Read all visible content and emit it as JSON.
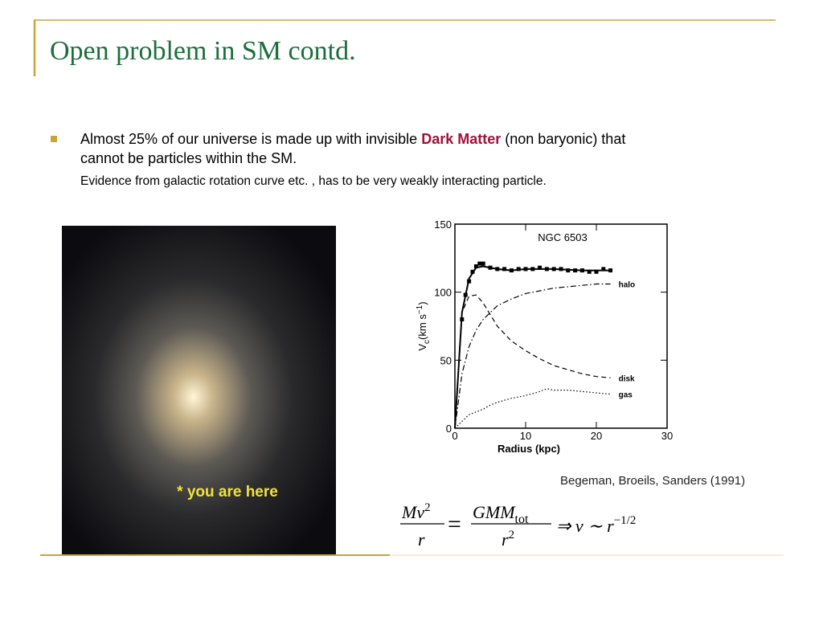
{
  "header": {
    "title": "Open problem in SM contd."
  },
  "bullet": {
    "line1_before": "Almost 25% of our universe is made up with invisible ",
    "highlight": "Dark Matter",
    "line1_after": " (non baryonic) that",
    "line2": "cannot be particles within the SM.",
    "sub": "Evidence from galactic rotation curve etc. , has to be very weakly interacting particle."
  },
  "galaxy_image": {
    "caption": "* you are here"
  },
  "chart_data": {
    "type": "line",
    "title": "NGC 6503",
    "xlabel": "Radius (kpc)",
    "ylabel": {
      "main": "V",
      "sub": "c",
      "unit": "(km s",
      "exp": "−1",
      "close": ")"
    },
    "xlim": [
      0,
      30
    ],
    "xticks": [
      0,
      10,
      20,
      30
    ],
    "ylim": [
      0,
      150
    ],
    "yticks": [
      0,
      50,
      100,
      150
    ],
    "series": [
      {
        "color": "#000000",
        "dash": "points",
        "x": [
          1,
          1.5,
          2,
          2.5,
          3,
          3.5,
          4,
          5,
          6,
          7,
          8,
          9,
          10,
          11,
          12,
          13,
          14,
          15,
          16,
          17,
          18,
          19,
          20,
          21,
          22
        ],
        "values": [
          80,
          98,
          108,
          115,
          119,
          121,
          121,
          118,
          117,
          117,
          116,
          117,
          117,
          117,
          118,
          117,
          117,
          117,
          116,
          116,
          116,
          115,
          115,
          117,
          116
        ]
      },
      {
        "color": "#000000",
        "dash": "solid",
        "x": [
          0,
          1,
          2,
          3,
          4,
          6,
          8,
          10,
          14,
          18,
          22
        ],
        "values": [
          0,
          85,
          110,
          118,
          119,
          117,
          116,
          117,
          117,
          116,
          116
        ]
      },
      {
        "name": "halo",
        "color": "#000000",
        "dash": "dashdot",
        "x": [
          0,
          1,
          2,
          3,
          4,
          6,
          8,
          10,
          12,
          14,
          16,
          18,
          20,
          22
        ],
        "values": [
          0,
          40,
          60,
          72,
          80,
          90,
          95,
          99,
          101,
          103,
          104,
          105,
          106,
          106
        ]
      },
      {
        "name": "disk",
        "color": "#000000",
        "dash": "dashed",
        "x": [
          0,
          1,
          2,
          3,
          4,
          6,
          8,
          10,
          12,
          14,
          16,
          18,
          20,
          22
        ],
        "values": [
          0,
          85,
          97,
          98,
          92,
          75,
          64,
          57,
          51,
          46,
          43,
          40,
          38,
          37
        ]
      },
      {
        "name": "gas",
        "color": "#000000",
        "dash": "dotted",
        "x": [
          0,
          2,
          4,
          5,
          6,
          8,
          10,
          12,
          13,
          14,
          16,
          18,
          20,
          22
        ],
        "values": [
          0,
          10,
          14,
          17,
          19,
          22,
          24,
          27,
          29,
          28,
          28,
          27,
          26,
          25
        ]
      }
    ]
  },
  "citation": "Begeman, Broeils, Sanders (1991)",
  "equation": {
    "lhs_num": "Mv",
    "lhs_num_exp": "2",
    "lhs_den": "r",
    "equals": "=",
    "rhs_num": "GMM",
    "rhs_num_sub": "tot",
    "rhs_den": "r",
    "rhs_den_exp": "2",
    "implies": "⇒ v ∼ r",
    "exp": "−1/2"
  }
}
